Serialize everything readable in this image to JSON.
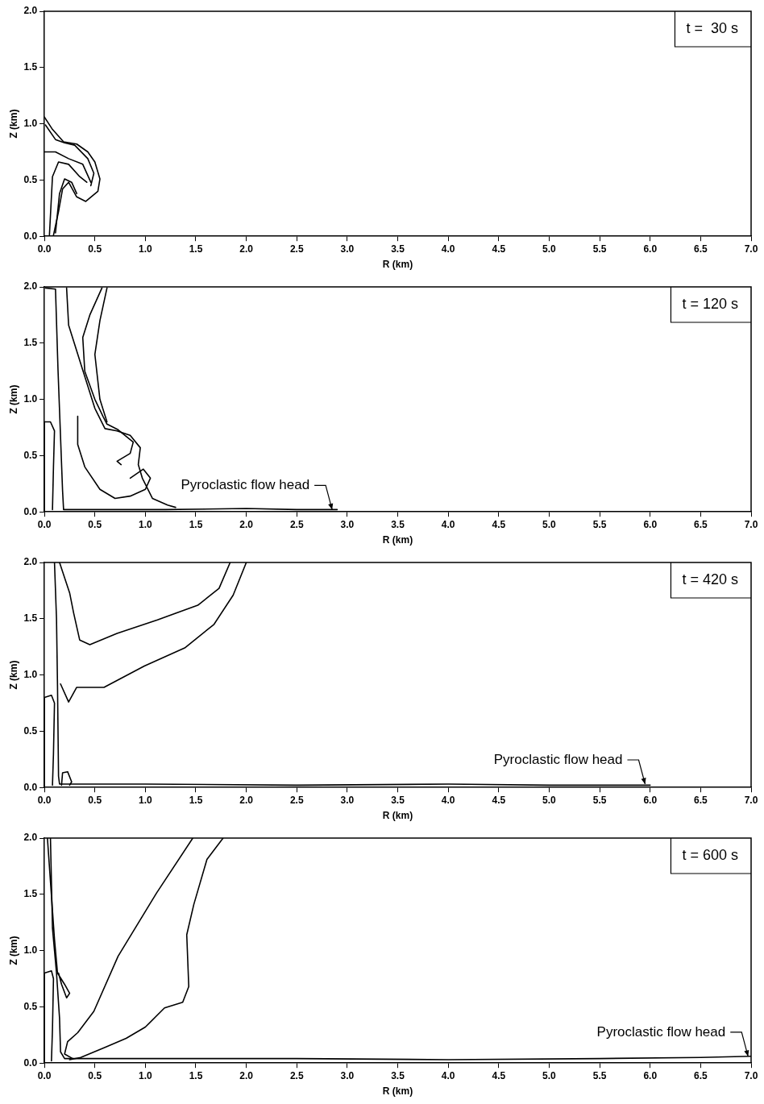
{
  "chart_data": [
    {
      "type": "line",
      "xlabel": "R (km)",
      "ylabel": "Z (km)",
      "xlim": [
        0,
        7
      ],
      "ylim": [
        0,
        2
      ],
      "xticks": [
        {
          "value": 0,
          "label": "0.0"
        },
        {
          "value": 0.5,
          "label": "0.5"
        },
        {
          "value": 1,
          "label": "1.0"
        },
        {
          "value": 1.5,
          "label": "1.5"
        },
        {
          "value": 2,
          "label": "2.0"
        },
        {
          "value": 2.5,
          "label": "2.5"
        },
        {
          "value": 3,
          "label": "3.0"
        },
        {
          "value": 3.5,
          "label": "3.5"
        },
        {
          "value": 4,
          "label": "4.0"
        },
        {
          "value": 4.5,
          "label": "4.5"
        },
        {
          "value": 5,
          "label": "5.0"
        },
        {
          "value": 5.5,
          "label": "5.5"
        },
        {
          "value": 6,
          "label": "6.0"
        },
        {
          "value": 6.5,
          "label": "6.5"
        },
        {
          "value": 7,
          "label": "7.0"
        }
      ],
      "yticks": [
        {
          "value": 0,
          "label": "0.0"
        },
        {
          "value": 0.5,
          "label": "0.5"
        },
        {
          "value": 1,
          "label": "1.0"
        },
        {
          "value": 1.5,
          "label": "1.5"
        },
        {
          "value": 2,
          "label": "2.0"
        }
      ],
      "grid": false,
      "legend": false,
      "marker": "none",
      "line_style": "solid",
      "annotations": [
        "t =  30 s"
      ],
      "series": [
        {
          "color": "#000000",
          "x": [
            0,
            0.08,
            0.19,
            0.32,
            0.43,
            0.5,
            0.55,
            0.53,
            0.41,
            0.32,
            0.24,
            0.18,
            0.14,
            0.09
          ],
          "values": [
            1.06,
            0.95,
            0.84,
            0.82,
            0.75,
            0.66,
            0.51,
            0.4,
            0.31,
            0.35,
            0.48,
            0.42,
            0.22,
            0.01
          ]
        },
        {
          "color": "#000000",
          "x": [
            0.01,
            0.11,
            0.2,
            0.3,
            0.43,
            0.49,
            0.46
          ],
          "values": [
            0.99,
            0.86,
            0.83,
            0.81,
            0.69,
            0.56,
            0.45
          ]
        },
        {
          "color": "#000000",
          "x": [
            0,
            0.11,
            0.24,
            0.38,
            0.46
          ],
          "values": [
            0.75,
            0.75,
            0.69,
            0.64,
            0.48
          ]
        },
        {
          "color": "#000000",
          "x": [
            0.05,
            0.08,
            0.14,
            0.24,
            0.35,
            0.42
          ],
          "values": [
            0.01,
            0.53,
            0.66,
            0.64,
            0.53,
            0.48
          ]
        },
        {
          "color": "#000000",
          "x": [
            0.11,
            0.15,
            0.2,
            0.27,
            0.32
          ],
          "values": [
            0.03,
            0.38,
            0.51,
            0.48,
            0.38
          ]
        }
      ]
    },
    {
      "type": "line",
      "xlabel": "R (km)",
      "ylabel": "Z (km)",
      "xlim": [
        0,
        7
      ],
      "ylim": [
        0,
        2
      ],
      "xticks": [
        {
          "value": 0,
          "label": "0.0"
        },
        {
          "value": 0.5,
          "label": "0.5"
        },
        {
          "value": 1,
          "label": "1.0"
        },
        {
          "value": 1.5,
          "label": "1.5"
        },
        {
          "value": 2,
          "label": "2.0"
        },
        {
          "value": 2.5,
          "label": "2.5"
        },
        {
          "value": 3,
          "label": "3.0"
        },
        {
          "value": 3.5,
          "label": "3.5"
        },
        {
          "value": 4,
          "label": "4.0"
        },
        {
          "value": 4.5,
          "label": "4.5"
        },
        {
          "value": 5,
          "label": "5.0"
        },
        {
          "value": 5.5,
          "label": "5.5"
        },
        {
          "value": 6,
          "label": "6.0"
        },
        {
          "value": 6.5,
          "label": "6.5"
        },
        {
          "value": 7,
          "label": "7.0"
        }
      ],
      "yticks": [
        {
          "value": 0,
          "label": "0.0"
        },
        {
          "value": 0.5,
          "label": "0.5"
        },
        {
          "value": 1,
          "label": "1.0"
        },
        {
          "value": 1.5,
          "label": "1.5"
        },
        {
          "value": 2,
          "label": "2.0"
        }
      ],
      "grid": false,
      "legend": false,
      "marker": "none",
      "line_style": "solid",
      "annotations": [
        "t = 120 s",
        {
          "text": "Pyroclastic flow head",
          "x": 2.85,
          "y": 0.02
        }
      ],
      "series": [
        {
          "color": "#000000",
          "x": [
            0,
            0,
            0.06,
            0.1,
            0.09,
            0.08
          ],
          "values": [
            0,
            0.8,
            0.8,
            0.72,
            0.4,
            0.02
          ]
        },
        {
          "color": "#000000",
          "x": [
            0.01,
            0.11,
            0.135,
            0.18,
            0.19,
            0.6,
            1.2,
            2.0,
            2.5,
            2.9
          ],
          "values": [
            1.99,
            1.98,
            1.26,
            0.19,
            0.02,
            0.02,
            0.02,
            0.03,
            0.02,
            0.02
          ]
        },
        {
          "color": "#000000",
          "x": [
            0.22,
            0.24,
            0.38,
            0.5,
            0.6,
            0.72,
            0.85,
            0.95,
            0.93,
            0.97,
            1.07,
            1.22,
            1.3
          ],
          "values": [
            1.99,
            1.66,
            1.26,
            0.92,
            0.74,
            0.72,
            0.68,
            0.57,
            0.42,
            0.3,
            0.12,
            0.06,
            0.04
          ]
        },
        {
          "color": "#000000",
          "x": [
            0.57,
            0.45,
            0.38,
            0.4,
            0.5,
            0.58,
            0.62,
            0.73,
            0.88,
            0.85,
            0.72,
            0.76
          ],
          "values": [
            1.99,
            1.75,
            1.55,
            1.25,
            1.0,
            0.85,
            0.78,
            0.73,
            0.62,
            0.52,
            0.45,
            0.42
          ]
        },
        {
          "color": "#000000",
          "x": [
            0.33,
            0.33,
            0.4,
            0.55,
            0.7,
            0.85,
            1.0,
            1.05,
            0.98,
            0.85
          ],
          "values": [
            0.85,
            0.6,
            0.4,
            0.2,
            0.12,
            0.14,
            0.2,
            0.3,
            0.38,
            0.3
          ]
        },
        {
          "color": "#000000",
          "x": [
            0.62,
            0.55,
            0.5,
            0.55,
            0.62
          ],
          "values": [
            1.99,
            1.7,
            1.4,
            1.0,
            0.8
          ]
        }
      ]
    },
    {
      "type": "line",
      "xlabel": "R (km)",
      "ylabel": "Z (km)",
      "xlim": [
        0,
        7
      ],
      "ylim": [
        0,
        2
      ],
      "xticks": [
        {
          "value": 0,
          "label": "0.0"
        },
        {
          "value": 0.5,
          "label": "0.5"
        },
        {
          "value": 1,
          "label": "1.0"
        },
        {
          "value": 1.5,
          "label": "1.5"
        },
        {
          "value": 2,
          "label": "2.0"
        },
        {
          "value": 2.5,
          "label": "2.5"
        },
        {
          "value": 3,
          "label": "3.0"
        },
        {
          "value": 3.5,
          "label": "3.5"
        },
        {
          "value": 4,
          "label": "4.0"
        },
        {
          "value": 4.5,
          "label": "4.5"
        },
        {
          "value": 5,
          "label": "5.0"
        },
        {
          "value": 5.5,
          "label": "5.5"
        },
        {
          "value": 6,
          "label": "6.0"
        },
        {
          "value": 6.5,
          "label": "6.5"
        },
        {
          "value": 7,
          "label": "7.0"
        }
      ],
      "yticks": [
        {
          "value": 0,
          "label": "0.0"
        },
        {
          "value": 0.5,
          "label": "0.5"
        },
        {
          "value": 1,
          "label": "1.0"
        },
        {
          "value": 1.5,
          "label": "1.5"
        },
        {
          "value": 2,
          "label": "2.0"
        }
      ],
      "grid": false,
      "legend": false,
      "marker": "none",
      "line_style": "solid",
      "annotations": [
        "t = 420 s",
        {
          "text": "Pyroclastic flow head",
          "x": 5.95,
          "y": 0.03
        }
      ],
      "series": [
        {
          "color": "#000000",
          "x": [
            0,
            0,
            0.07,
            0.1,
            0.09,
            0.08
          ],
          "values": [
            0,
            0.8,
            0.82,
            0.75,
            0.3,
            0.02
          ]
        },
        {
          "color": "#000000",
          "x": [
            0.1,
            0.12,
            0.13,
            0.14,
            0.15,
            1.0,
            2.5,
            4.0,
            5.0,
            6.0
          ],
          "values": [
            2.0,
            1.5,
            0.9,
            0.1,
            0.03,
            0.03,
            0.02,
            0.03,
            0.02,
            0.02
          ]
        },
        {
          "color": "#000000",
          "x": [
            0.15,
            0.25,
            0.29,
            0.35,
            0.45,
            0.72,
            1.12,
            1.52,
            1.73,
            1.84
          ],
          "values": [
            2.0,
            1.73,
            1.55,
            1.31,
            1.27,
            1.37,
            1.49,
            1.62,
            1.77,
            2.0
          ]
        },
        {
          "color": "#000000",
          "x": [
            0.16,
            0.24,
            0.32,
            0.59,
            0.99,
            1.39,
            1.68,
            1.87,
            2.0
          ],
          "values": [
            0.92,
            0.76,
            0.89,
            0.89,
            1.08,
            1.24,
            1.45,
            1.71,
            2.0
          ]
        },
        {
          "color": "#000000",
          "x": [
            0.17,
            0.18,
            0.23,
            0.27,
            0.25
          ],
          "values": [
            0.02,
            0.13,
            0.14,
            0.05,
            0.02
          ]
        }
      ]
    },
    {
      "type": "line",
      "xlabel": "R (km)",
      "ylabel": "Z (km)",
      "xlim": [
        0,
        7
      ],
      "ylim": [
        0,
        2
      ],
      "xticks": [
        {
          "value": 0,
          "label": "0.0"
        },
        {
          "value": 0.5,
          "label": "0.5"
        },
        {
          "value": 1,
          "label": "1.0"
        },
        {
          "value": 1.5,
          "label": "1.5"
        },
        {
          "value": 2,
          "label": "2.0"
        },
        {
          "value": 2.5,
          "label": "2.5"
        },
        {
          "value": 3,
          "label": "3.0"
        },
        {
          "value": 3.5,
          "label": "3.5"
        },
        {
          "value": 4,
          "label": "4.0"
        },
        {
          "value": 4.5,
          "label": "4.5"
        },
        {
          "value": 5,
          "label": "5.0"
        },
        {
          "value": 5.5,
          "label": "5.5"
        },
        {
          "value": 6,
          "label": "6.0"
        },
        {
          "value": 6.5,
          "label": "6.5"
        },
        {
          "value": 7,
          "label": "7.0"
        }
      ],
      "yticks": [
        {
          "value": 0,
          "label": "0.0"
        },
        {
          "value": 0.5,
          "label": "0.5"
        },
        {
          "value": 1,
          "label": "1.0"
        },
        {
          "value": 1.5,
          "label": "1.5"
        },
        {
          "value": 2,
          "label": "2.0"
        }
      ],
      "grid": false,
      "legend": false,
      "marker": "none",
      "line_style": "solid",
      "annotations": [
        "t = 600 s",
        {
          "text": "Pyroclastic flow head",
          "x": 6.97,
          "y": 0.06
        }
      ],
      "series": [
        {
          "color": "#000000",
          "x": [
            0,
            0,
            0.07,
            0.09,
            0.08,
            0.07
          ],
          "values": [
            0,
            0.8,
            0.82,
            0.75,
            0.3,
            0.02
          ]
        },
        {
          "color": "#000000",
          "x": [
            0.03,
            0.1,
            0.13,
            0.2,
            0.25,
            0.22,
            0.17,
            0.14
          ],
          "values": [
            2.0,
            1.1,
            0.8,
            0.7,
            0.62,
            0.58,
            0.7,
            0.8
          ]
        },
        {
          "color": "#000000",
          "x": [
            0.06,
            0.08,
            0.12,
            0.15,
            0.16,
            0.2,
            1.0,
            2.5,
            4.0,
            5.5,
            6.5,
            7.0
          ],
          "values": [
            2.0,
            1.2,
            0.8,
            0.4,
            0.1,
            0.04,
            0.04,
            0.04,
            0.03,
            0.04,
            0.05,
            0.06
          ]
        },
        {
          "color": "#000000",
          "x": [
            1.47,
            1.11,
            0.73,
            0.49,
            0.33,
            0.23,
            0.2,
            0.28
          ],
          "values": [
            2.0,
            1.51,
            0.95,
            0.46,
            0.27,
            0.19,
            0.08,
            0.04
          ]
        },
        {
          "color": "#000000",
          "x": [
            1.77,
            1.61,
            1.48,
            1.41,
            1.43,
            1.37,
            1.19,
            1.0,
            0.81,
            0.6,
            0.36,
            0.25
          ],
          "values": [
            2.0,
            1.81,
            1.41,
            1.14,
            0.68,
            0.54,
            0.49,
            0.32,
            0.22,
            0.14,
            0.05,
            0.03
          ]
        }
      ]
    }
  ]
}
